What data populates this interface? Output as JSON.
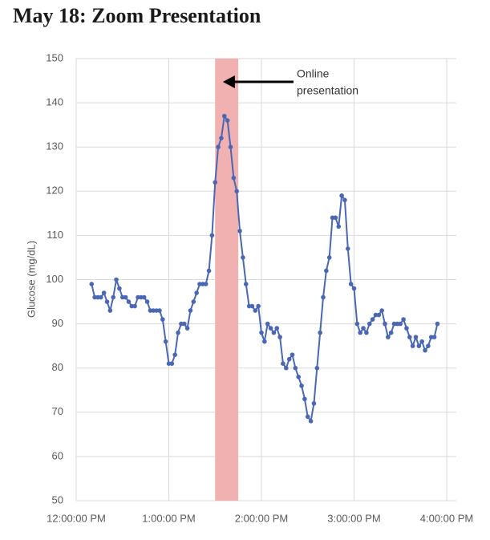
{
  "chart_data": {
    "type": "line",
    "title": "May 18: Zoom Presentation",
    "y_label": "Glucose (mg/dL)",
    "color": "#4a67b3",
    "markers": true,
    "grid": true,
    "xlim": [
      0,
      240
    ],
    "xticks": [
      {
        "value": 0,
        "label": "12:00:00 PM"
      },
      {
        "value": 60,
        "label": "1:00:00 PM"
      },
      {
        "value": 120,
        "label": "2:00:00 PM"
      },
      {
        "value": 180,
        "label": "3:00:00 PM"
      },
      {
        "value": 240,
        "label": "4:00:00 PM"
      }
    ],
    "ylim": [
      50,
      150
    ],
    "yticks": [
      50,
      60,
      70,
      80,
      90,
      100,
      110,
      120,
      130,
      140,
      150
    ],
    "highlight": {
      "xlim": [
        90,
        105
      ],
      "color": "#f2b1b1"
    },
    "annotation": {
      "lines": [
        "Online",
        "presentation"
      ],
      "x": 95
    },
    "x": [
      10,
      12,
      14,
      16,
      18,
      20,
      22,
      24,
      26,
      28,
      30,
      32,
      34,
      36,
      38,
      40,
      42,
      44,
      46,
      48,
      50,
      52,
      54,
      56,
      58,
      60,
      62,
      64,
      66,
      68,
      70,
      72,
      74,
      76,
      78,
      80,
      82,
      84,
      86,
      88,
      90,
      92,
      94,
      96,
      98,
      100,
      102,
      104,
      106,
      108,
      110,
      112,
      114,
      116,
      118,
      120,
      122,
      124,
      126,
      128,
      130,
      132,
      134,
      136,
      138,
      140,
      142,
      144,
      146,
      148,
      150,
      152,
      154,
      156,
      158,
      160,
      162,
      164,
      166,
      168,
      170,
      172,
      174,
      176,
      178,
      180,
      182,
      184,
      186,
      188,
      190,
      192,
      194,
      196,
      198,
      200,
      202,
      204,
      206,
      208,
      210,
      212,
      214,
      216,
      218,
      220,
      222,
      224,
      226,
      228,
      230,
      232,
      234
    ],
    "values": [
      99,
      96,
      96,
      96,
      97,
      95,
      93,
      96,
      100,
      98,
      96,
      96,
      95,
      94,
      94,
      96,
      96,
      96,
      95,
      93,
      93,
      93,
      93,
      91,
      86,
      81,
      81,
      83,
      88,
      90,
      90,
      89,
      93,
      95,
      97,
      99,
      99,
      99,
      102,
      110,
      122,
      130,
      132,
      137,
      136,
      130,
      123,
      120,
      111,
      105,
      99,
      94,
      94,
      93,
      94,
      88,
      86,
      90,
      89,
      88,
      89,
      87,
      81,
      80,
      82,
      83,
      80,
      78,
      76,
      73,
      69,
      68,
      72,
      80,
      88,
      96,
      102,
      105,
      114,
      114,
      112,
      119,
      118,
      107,
      99,
      98,
      90,
      88,
      89,
      88,
      90,
      91,
      92,
      92,
      93,
      90,
      87,
      88,
      90,
      90,
      90,
      91,
      89,
      87,
      85,
      87,
      85,
      86,
      84,
      85,
      87,
      87,
      90
    ]
  }
}
